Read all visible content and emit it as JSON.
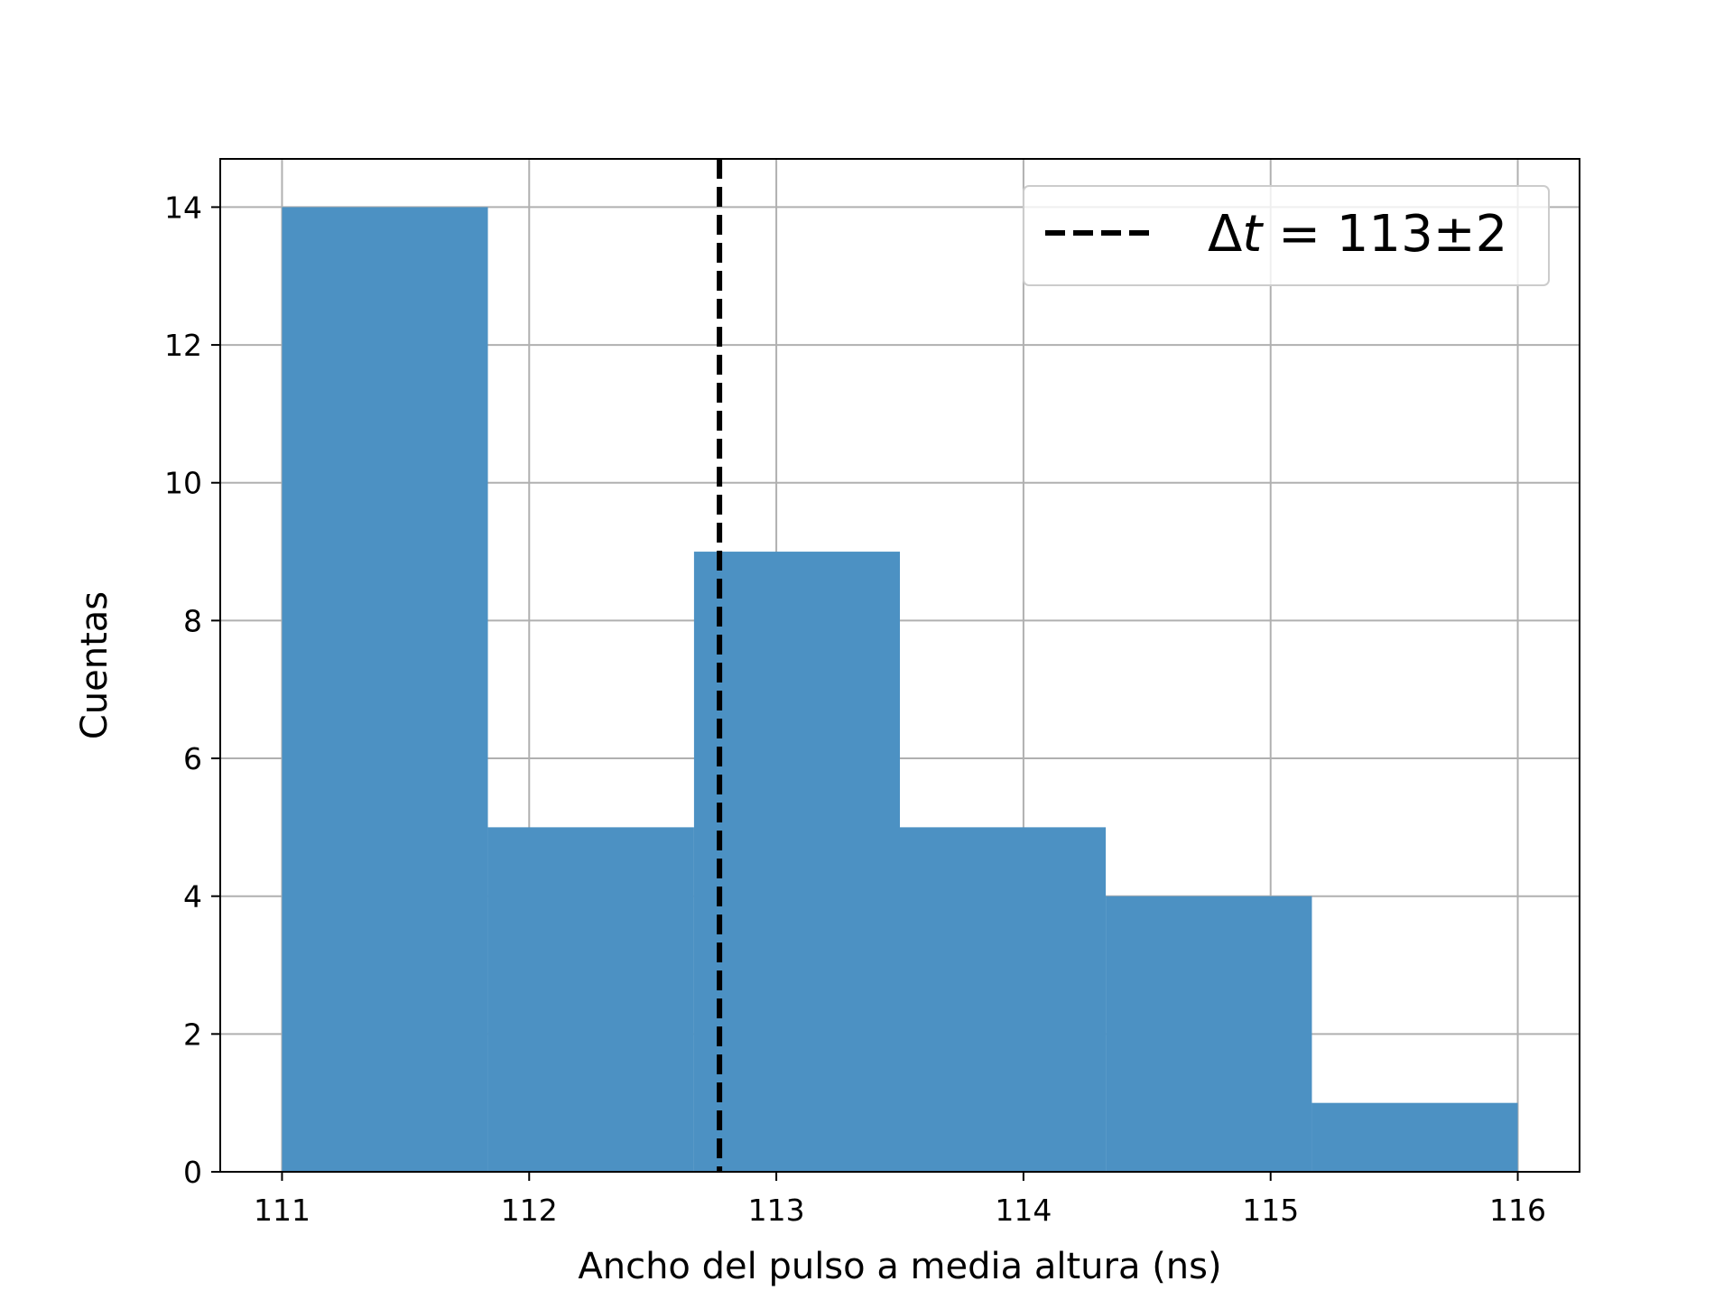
{
  "chart_data": {
    "type": "bar",
    "chart_kind": "histogram",
    "xlabel": "Ancho del pulso a media altura (ns)",
    "ylabel": "Cuentas",
    "xlim": [
      110.75,
      116.25
    ],
    "ylim": [
      0,
      14.7
    ],
    "xticks": [
      "111",
      "112",
      "113",
      "114",
      "115",
      "116"
    ],
    "yticks": [
      "0",
      "2",
      "4",
      "6",
      "8",
      "10",
      "12",
      "14"
    ],
    "grid": true,
    "bins": [
      {
        "x0": 111.0,
        "x1": 111.833,
        "count": 14
      },
      {
        "x0": 111.833,
        "x1": 112.667,
        "count": 5
      },
      {
        "x0": 112.667,
        "x1": 113.5,
        "count": 9
      },
      {
        "x0": 113.5,
        "x1": 114.333,
        "count": 5
      },
      {
        "x0": 114.333,
        "x1": 115.167,
        "count": 4
      },
      {
        "x0": 115.167,
        "x1": 116.0,
        "count": 1
      }
    ],
    "bar_color": "#4c91c3",
    "reference_line": {
      "x": 112.77,
      "style": "dashed",
      "color": "#000000",
      "label_prefix": "Δ",
      "label_var": "t",
      "label_value": " = 113±2"
    },
    "legend_position": "top-right"
  }
}
